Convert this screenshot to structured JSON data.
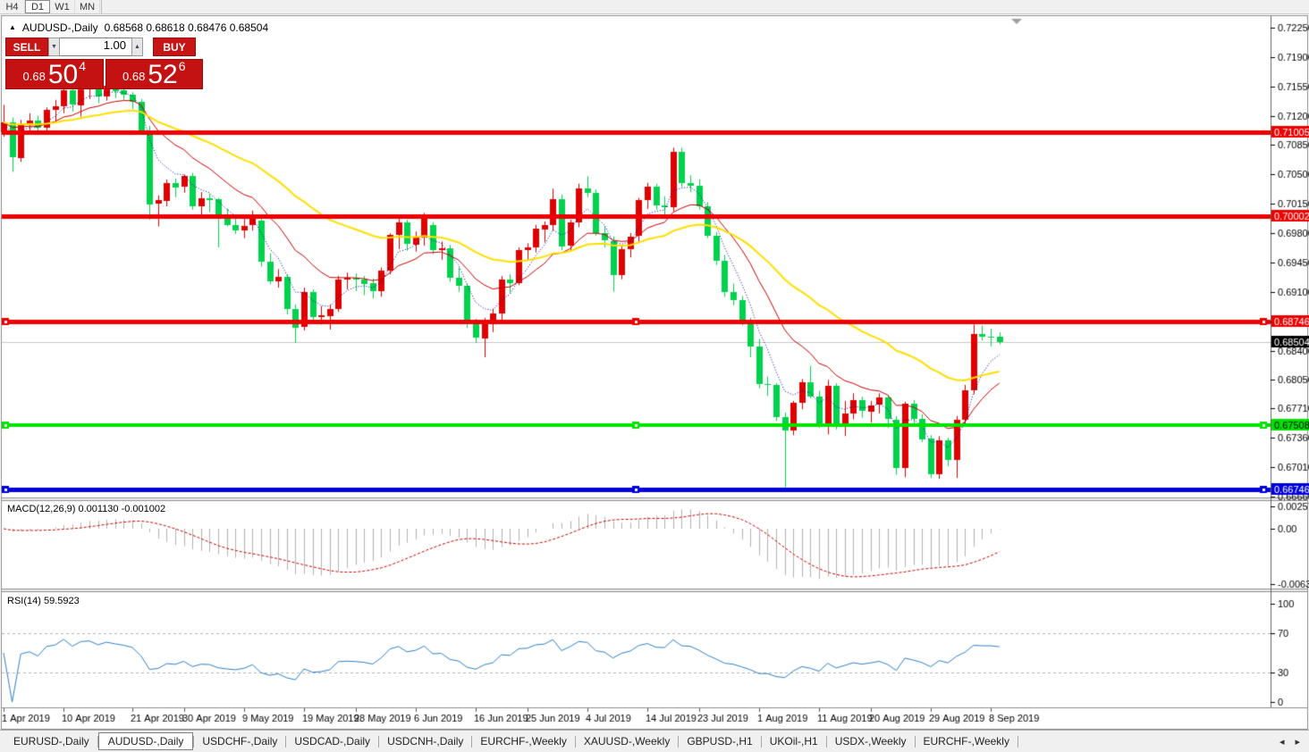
{
  "toolbar": {
    "timeframes": {
      "items": [
        {
          "label": "H4"
        },
        {
          "label": "D1"
        },
        {
          "label": "W1"
        },
        {
          "label": "MN"
        }
      ],
      "active_index": 1
    }
  },
  "chart": {
    "title": "AUDUSD-,Daily",
    "ohlc_text": "0.68568 0.68618 0.68476 0.68504"
  },
  "trade_panel": {
    "sell_label": "SELL",
    "buy_label": "BUY",
    "volume": "1.00",
    "spin_down_icon": "▼",
    "spin_up_icon": "▲",
    "sell_price": {
      "prefix": "0.68",
      "big": "50",
      "sup": "4"
    },
    "buy_price": {
      "prefix": "0.68",
      "big": "52",
      "sup": "6"
    }
  },
  "indicators": {
    "macd_label": "MACD(12,26,9) 0.001130 -0.001002",
    "rsi_label": "RSI(14) 59.5923"
  },
  "tabs": {
    "active_index": 1,
    "items": [
      {
        "label": "EURUSD-,Daily"
      },
      {
        "label": "AUDUSD-,Daily"
      },
      {
        "label": "USDCHF-,Daily"
      },
      {
        "label": "USDCAD-,Daily"
      },
      {
        "label": "USDCNH-,Daily"
      },
      {
        "label": "EURCHF-,Weekly"
      },
      {
        "label": "XAUUSD-,Weekly"
      },
      {
        "label": "GBPUSD-,H1"
      },
      {
        "label": "UKOil-,H1"
      },
      {
        "label": "USDX-,Weekly"
      },
      {
        "label": "EURCHF-,Weekly"
      }
    ],
    "left_arrow": "◂",
    "right_arrow": "▸"
  },
  "chart_data": {
    "type": "candlestick",
    "symbol": "AUDUSD-,Daily",
    "title": "AUDUSD-,Daily 0.68568 0.68618 0.68476 0.68504",
    "candle_colors": {
      "up": "#e00000",
      "down": "#00d24e"
    },
    "ohlc": [
      [
        0.71,
        0.7133,
        0.7095,
        0.7112
      ],
      [
        0.7112,
        0.7118,
        0.7053,
        0.707
      ],
      [
        0.707,
        0.7115,
        0.7065,
        0.711
      ],
      [
        0.711,
        0.7123,
        0.7101,
        0.7114
      ],
      [
        0.7114,
        0.712,
        0.7098,
        0.7106
      ],
      [
        0.7106,
        0.713,
        0.7102,
        0.7127
      ],
      [
        0.7127,
        0.7139,
        0.7113,
        0.7131
      ],
      [
        0.7131,
        0.7153,
        0.7123,
        0.715
      ],
      [
        0.715,
        0.7158,
        0.7125,
        0.7133
      ],
      [
        0.7133,
        0.7156,
        0.7119,
        0.7152
      ],
      [
        0.7152,
        0.7159,
        0.714,
        0.7155
      ],
      [
        0.7155,
        0.7158,
        0.7135,
        0.7143
      ],
      [
        0.7143,
        0.716,
        0.7138,
        0.7156
      ],
      [
        0.7156,
        0.7158,
        0.7141,
        0.715
      ],
      [
        0.715,
        0.7156,
        0.7139,
        0.7145
      ],
      [
        0.7145,
        0.7148,
        0.7128,
        0.7137
      ],
      [
        0.7137,
        0.714,
        0.7101,
        0.7103
      ],
      [
        0.7103,
        0.7108,
        0.6996,
        0.7015
      ],
      [
        0.7015,
        0.7025,
        0.6988,
        0.7019
      ],
      [
        0.7019,
        0.7044,
        0.7012,
        0.704
      ],
      [
        0.704,
        0.7045,
        0.7023,
        0.7035
      ],
      [
        0.7035,
        0.705,
        0.7028,
        0.7048
      ],
      [
        0.7048,
        0.7052,
        0.7008,
        0.7012
      ],
      [
        0.7012,
        0.7029,
        0.7,
        0.7022
      ],
      [
        0.7022,
        0.7027,
        0.7005,
        0.702
      ],
      [
        0.702,
        0.7022,
        0.6963,
        0.6998
      ],
      [
        0.6998,
        0.7009,
        0.6988,
        0.699
      ],
      [
        0.699,
        0.7,
        0.6979,
        0.6984
      ],
      [
        0.6984,
        0.6996,
        0.6974,
        0.6989
      ],
      [
        0.6989,
        0.7007,
        0.6983,
        0.7001
      ],
      [
        0.6995,
        0.6998,
        0.694,
        0.6946
      ],
      [
        0.6946,
        0.6956,
        0.6919,
        0.6923
      ],
      [
        0.6923,
        0.6937,
        0.6915,
        0.6928
      ],
      [
        0.6928,
        0.6931,
        0.6883,
        0.689
      ],
      [
        0.689,
        0.6895,
        0.6849,
        0.6868
      ],
      [
        0.6868,
        0.6915,
        0.6864,
        0.691
      ],
      [
        0.691,
        0.6913,
        0.6875,
        0.688
      ],
      [
        0.688,
        0.6893,
        0.6871,
        0.6882
      ],
      [
        0.6882,
        0.6895,
        0.6865,
        0.689
      ],
      [
        0.689,
        0.6929,
        0.6886,
        0.6925
      ],
      [
        0.6925,
        0.6933,
        0.6913,
        0.6927
      ],
      [
        0.6927,
        0.6932,
        0.6911,
        0.6925
      ],
      [
        0.6925,
        0.6929,
        0.6906,
        0.692
      ],
      [
        0.692,
        0.6926,
        0.6902,
        0.691
      ],
      [
        0.691,
        0.6939,
        0.6904,
        0.6935
      ],
      [
        0.6935,
        0.698,
        0.6931,
        0.6978
      ],
      [
        0.6978,
        0.6999,
        0.6961,
        0.6993
      ],
      [
        0.6993,
        0.6996,
        0.6959,
        0.6967
      ],
      [
        0.6967,
        0.6982,
        0.6958,
        0.6975
      ],
      [
        0.6975,
        0.7004,
        0.6965,
        0.6999
      ],
      [
        0.699,
        0.6993,
        0.6955,
        0.696
      ],
      [
        0.696,
        0.697,
        0.6948,
        0.6962
      ],
      [
        0.6962,
        0.6966,
        0.6922,
        0.6927
      ],
      [
        0.6927,
        0.6939,
        0.691,
        0.6917
      ],
      [
        0.6917,
        0.692,
        0.6867,
        0.6872
      ],
      [
        0.6872,
        0.6878,
        0.6849,
        0.6855
      ],
      [
        0.6855,
        0.6879,
        0.6832,
        0.6875
      ],
      [
        0.6875,
        0.689,
        0.6862,
        0.6884
      ],
      [
        0.6884,
        0.6929,
        0.6876,
        0.6925
      ],
      [
        0.6925,
        0.6931,
        0.6909,
        0.6921
      ],
      [
        0.6921,
        0.6963,
        0.6918,
        0.696
      ],
      [
        0.696,
        0.6968,
        0.6948,
        0.6963
      ],
      [
        0.6963,
        0.699,
        0.6957,
        0.6985
      ],
      [
        0.6985,
        0.6994,
        0.6969,
        0.699
      ],
      [
        0.699,
        0.7033,
        0.6983,
        0.7021
      ],
      [
        0.7021,
        0.7026,
        0.696,
        0.6965
      ],
      [
        0.6965,
        0.6996,
        0.6958,
        0.6993
      ],
      [
        0.6993,
        0.7039,
        0.6987,
        0.7033
      ],
      [
        0.7033,
        0.7048,
        0.7023,
        0.7028
      ],
      [
        0.7028,
        0.7032,
        0.6977,
        0.698
      ],
      [
        0.698,
        0.6988,
        0.6963,
        0.6971
      ],
      [
        0.6971,
        0.6976,
        0.691,
        0.693
      ],
      [
        0.693,
        0.6965,
        0.6925,
        0.6961
      ],
      [
        0.6961,
        0.698,
        0.6951,
        0.6976
      ],
      [
        0.6976,
        0.7022,
        0.697,
        0.7019
      ],
      [
        0.7019,
        0.704,
        0.7009,
        0.7035
      ],
      [
        0.7035,
        0.7039,
        0.7008,
        0.7013
      ],
      [
        0.7013,
        0.7024,
        0.7001,
        0.7011
      ],
      [
        0.7011,
        0.7082,
        0.7006,
        0.7077
      ],
      [
        0.7077,
        0.7082,
        0.7035,
        0.704
      ],
      [
        0.704,
        0.7049,
        0.7029,
        0.7037
      ],
      [
        0.7037,
        0.7044,
        0.7008,
        0.7012
      ],
      [
        0.7012,
        0.7017,
        0.6974,
        0.6977
      ],
      [
        0.6977,
        0.6981,
        0.6942,
        0.6947
      ],
      [
        0.6947,
        0.6954,
        0.6904,
        0.691
      ],
      [
        0.691,
        0.692,
        0.6894,
        0.69
      ],
      [
        0.69,
        0.6905,
        0.687,
        0.6875
      ],
      [
        0.6875,
        0.6879,
        0.6832,
        0.6845
      ],
      [
        0.6845,
        0.6854,
        0.6795,
        0.68
      ],
      [
        0.68,
        0.6809,
        0.6786,
        0.6799
      ],
      [
        0.6799,
        0.6801,
        0.6756,
        0.6761
      ],
      [
        0.6761,
        0.6766,
        0.6677,
        0.6745
      ],
      [
        0.6745,
        0.678,
        0.6739,
        0.6778
      ],
      [
        0.6778,
        0.6806,
        0.677,
        0.6802
      ],
      [
        0.6802,
        0.6822,
        0.6783,
        0.6785
      ],
      [
        0.6785,
        0.6792,
        0.6748,
        0.6753
      ],
      [
        0.6753,
        0.6805,
        0.674,
        0.6798
      ],
      [
        0.6798,
        0.6801,
        0.6746,
        0.6749
      ],
      [
        0.6749,
        0.678,
        0.6738,
        0.6765
      ],
      [
        0.6765,
        0.6789,
        0.6758,
        0.6781
      ],
      [
        0.6781,
        0.6785,
        0.676,
        0.6768
      ],
      [
        0.6768,
        0.678,
        0.6754,
        0.6775
      ],
      [
        0.6775,
        0.6789,
        0.6765,
        0.6784
      ],
      [
        0.6784,
        0.6787,
        0.6748,
        0.6758
      ],
      [
        0.6758,
        0.6762,
        0.6692,
        0.67
      ],
      [
        0.67,
        0.6779,
        0.6689,
        0.6777
      ],
      [
        0.6777,
        0.6781,
        0.6753,
        0.6759
      ],
      [
        0.6759,
        0.6764,
        0.6731,
        0.6735
      ],
      [
        0.6735,
        0.6739,
        0.6688,
        0.6692
      ],
      [
        0.6692,
        0.6738,
        0.6687,
        0.6733
      ],
      [
        0.6733,
        0.6736,
        0.6702,
        0.671
      ],
      [
        0.671,
        0.6762,
        0.6688,
        0.6758
      ],
      [
        0.6758,
        0.6799,
        0.6752,
        0.6793
      ],
      [
        0.6793,
        0.6871,
        0.6788,
        0.686
      ],
      [
        0.686,
        0.687,
        0.6852,
        0.6857
      ],
      [
        0.6857,
        0.6866,
        0.6845,
        0.68568
      ],
      [
        0.68568,
        0.68618,
        0.68476,
        0.68504
      ]
    ],
    "price_ticks": [
      0.7225,
      0.719,
      0.7155,
      0.712,
      0.7085,
      0.705,
      0.7015,
      0.698,
      0.6945,
      0.691,
      0.6875,
      0.684,
      0.6805,
      0.6771,
      0.6736,
      0.6701,
      0.6666
    ],
    "hlines": [
      {
        "price": 0.71005,
        "color": "#ee0000",
        "width": 5,
        "selected": false,
        "label_text_color": "#ffffff"
      },
      {
        "price": 0.70002,
        "color": "#ee0000",
        "width": 5,
        "selected": false,
        "label_text_color": "#ffffff"
      },
      {
        "price": 0.68746,
        "color": "#ee0000",
        "width": 5,
        "selected": true,
        "label_text_color": "#ffffff"
      },
      {
        "price": 0.67508,
        "color": "#00e400",
        "width": 4,
        "selected": true,
        "label_text_color": "#000000"
      },
      {
        "price": 0.66746,
        "color": "#0000dc",
        "width": 5,
        "selected": true,
        "label_text_color": "#ffffff"
      }
    ],
    "current_price": {
      "value": 0.68504,
      "line_color": "#c8c8c8",
      "label_bg": "#000000",
      "label_text_color": "#ffffff"
    },
    "overlays": [
      {
        "name": "ma-fast",
        "method": "ema",
        "period": 5,
        "color": "#0000a0",
        "style": "dotted",
        "width": 1
      },
      {
        "name": "ma-mid",
        "method": "ema",
        "period": 13,
        "color": "#c80000",
        "style": "solid",
        "width": 1
      },
      {
        "name": "ma-slow",
        "method": "ema",
        "period": 34,
        "color": "#ffdf00",
        "style": "solid",
        "width": 2
      }
    ],
    "x_labels": [
      {
        "i": 0,
        "label": "1 Apr 2019"
      },
      {
        "i": 7,
        "label": "10 Apr 2019"
      },
      {
        "i": 15,
        "label": "21 Apr 2019"
      },
      {
        "i": 21,
        "label": "30 Apr 2019"
      },
      {
        "i": 28,
        "label": "9 May 2019"
      },
      {
        "i": 35,
        "label": "19 May 2019"
      },
      {
        "i": 41,
        "label": "28 May 2019"
      },
      {
        "i": 48,
        "label": "6 Jun 2019"
      },
      {
        "i": 55,
        "label": "16 Jun 2019"
      },
      {
        "i": 61,
        "label": "25 Jun 2019"
      },
      {
        "i": 68,
        "label": "4 Jul 2019"
      },
      {
        "i": 75,
        "label": "14 Jul 2019"
      },
      {
        "i": 81,
        "label": "23 Jul 2019"
      },
      {
        "i": 88,
        "label": "1 Aug 2019"
      },
      {
        "i": 95,
        "label": "11 Aug 2019"
      },
      {
        "i": 101,
        "label": "20 Aug 2019"
      },
      {
        "i": 108,
        "label": "29 Aug 2019"
      },
      {
        "i": 115,
        "label": "8 Sep 2019"
      }
    ],
    "macd": {
      "params": [
        12,
        26,
        9
      ],
      "current_values": [
        0.00113,
        -0.001002
      ],
      "hist_color": "#b2b2b2",
      "signal_color": "#cc0000",
      "axis_labels": [
        {
          "value": 0.002574,
          "label": "0.002574"
        },
        {
          "value": 0.0,
          "label": "0.00"
        },
        {
          "value": -0.006326,
          "label": "-0.006326"
        }
      ]
    },
    "rsi": {
      "period": 14,
      "current_value": 59.5923,
      "color": "#2f80c8",
      "levels": [
        70,
        30
      ],
      "axis_labels": [
        {
          "value": 100,
          "label": "100"
        },
        {
          "value": 70,
          "label": "70"
        },
        {
          "value": 30,
          "label": "30"
        },
        {
          "value": 0,
          "label": "0"
        }
      ]
    }
  }
}
